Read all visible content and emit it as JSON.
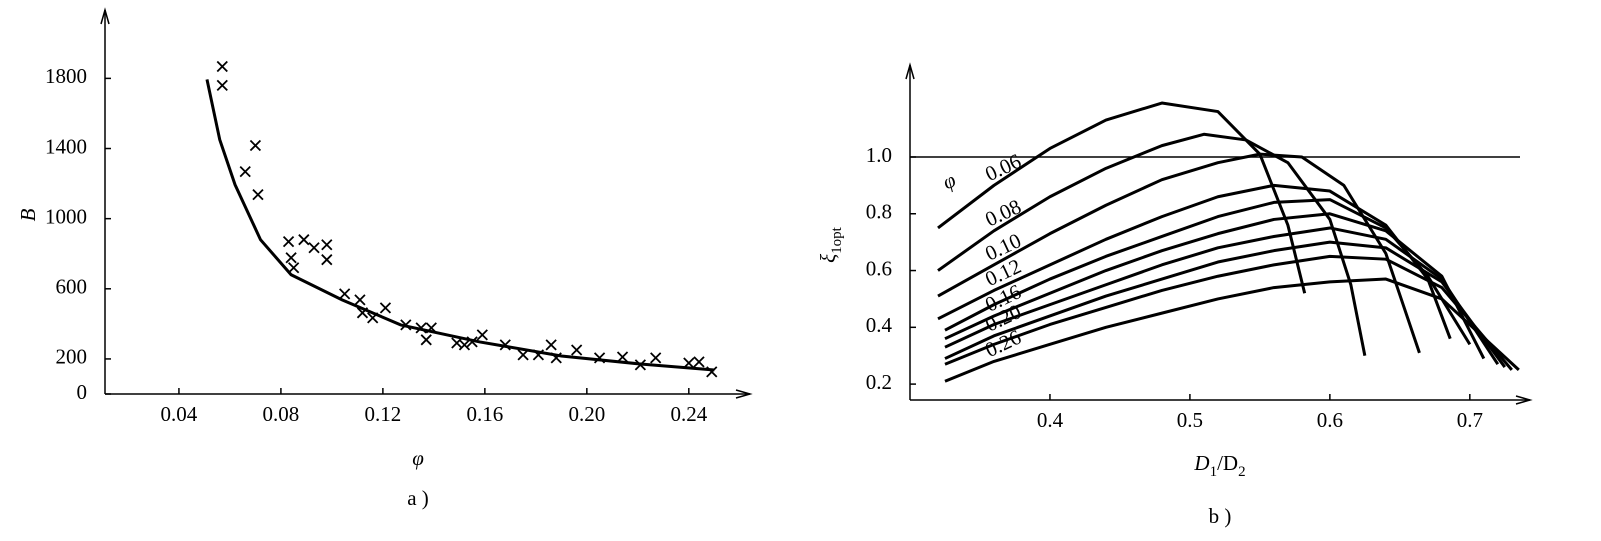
{
  "chart_data": [
    {
      "type": "scatter",
      "x_label": "φ",
      "y_label": "B",
      "caption": "a )",
      "xlim": [
        0.011,
        0.264
      ],
      "ylim": [
        0,
        2190
      ],
      "xticks": [
        0.04,
        0.08,
        0.12,
        0.16,
        {
          "value": 0.2,
          "label": "0.20"
        },
        0.24
      ],
      "yticks": [
        0,
        200,
        600,
        1000,
        1400,
        1800
      ],
      "x": [
        0.057,
        0.057,
        0.07,
        0.066,
        0.071,
        0.083,
        0.084,
        0.085,
        0.089,
        0.093,
        0.098,
        0.098,
        0.105,
        0.111,
        0.112,
        0.116,
        0.121,
        0.129,
        0.135,
        0.137,
        0.139,
        0.149,
        0.152,
        0.155,
        0.159,
        0.168,
        0.175,
        0.181,
        0.186,
        0.188,
        0.196,
        0.205,
        0.214,
        0.221,
        0.227,
        0.24,
        0.249,
        0.244
      ],
      "values": [
        1868,
        1760,
        1417,
        1268,
        1137,
        869,
        777,
        720,
        880,
        834,
        851,
        766,
        571,
        537,
        463,
        434,
        491,
        394,
        377,
        309,
        377,
        291,
        280,
        297,
        337,
        280,
        223,
        223,
        280,
        206,
        251,
        206,
        211,
        166,
        206,
        177,
        126,
        183
      ],
      "fit": {
        "x": [
          0.051,
          0.056,
          0.062,
          0.072,
          0.084,
          0.104,
          0.127,
          0.158,
          0.19,
          0.221,
          0.25
        ],
        "values": [
          1794,
          1451,
          1194,
          880,
          680,
          537,
          394,
          297,
          217,
          171,
          137
        ]
      }
    },
    {
      "type": "line",
      "x_label": [
        "D",
        "1",
        "/D",
        "2"
      ],
      "y_label": [
        "ξ",
        "1opt"
      ],
      "caption": "b )",
      "annotation": "φ",
      "xlim": [
        0.3,
        0.743
      ],
      "ylim": [
        0.144,
        1.324
      ],
      "xticks": [
        0.4,
        0.5,
        0.6,
        0.7
      ],
      "yticks": [
        0.2,
        0.4,
        0.6,
        0.8,
        {
          "value": 1.0,
          "label": "1.0"
        }
      ],
      "hline": 1.0,
      "series": [
        {
          "name": "0.06",
          "x": [
            0.32,
            0.36,
            0.4,
            0.44,
            0.48,
            0.52,
            0.55,
            0.57,
            0.582
          ],
          "values": [
            0.75,
            0.9,
            1.03,
            1.13,
            1.19,
            1.16,
            1.01,
            0.76,
            0.52
          ]
        },
        {
          "name": "0.08",
          "x": [
            0.32,
            0.36,
            0.4,
            0.44,
            0.48,
            0.51,
            0.54,
            0.57,
            0.6,
            0.615,
            0.625
          ],
          "values": [
            0.6,
            0.74,
            0.86,
            0.96,
            1.04,
            1.08,
            1.06,
            0.98,
            0.78,
            0.55,
            0.3
          ]
        },
        {
          "name": "0.10",
          "x": [
            0.32,
            0.36,
            0.4,
            0.44,
            0.48,
            0.52,
            0.55,
            0.58,
            0.61,
            0.64,
            0.664
          ],
          "values": [
            0.51,
            0.62,
            0.73,
            0.83,
            0.92,
            0.98,
            1.01,
            1.0,
            0.9,
            0.66,
            0.31
          ]
        },
        {
          "name": "0.12",
          "x": [
            0.32,
            0.36,
            0.4,
            0.44,
            0.48,
            0.52,
            0.56,
            0.6,
            0.64,
            0.67,
            0.686
          ],
          "values": [
            0.43,
            0.53,
            0.62,
            0.71,
            0.79,
            0.86,
            0.9,
            0.88,
            0.76,
            0.57,
            0.36
          ]
        },
        {
          "x": [
            0.325,
            0.36,
            0.4,
            0.44,
            0.48,
            0.52,
            0.56,
            0.6,
            0.64,
            0.67,
            0.7
          ],
          "values": [
            0.39,
            0.48,
            0.57,
            0.65,
            0.72,
            0.79,
            0.84,
            0.85,
            0.75,
            0.58,
            0.34
          ]
        },
        {
          "name": "0.16",
          "x": [
            0.325,
            0.36,
            0.4,
            0.44,
            0.48,
            0.52,
            0.56,
            0.6,
            0.64,
            0.68,
            0.71
          ],
          "values": [
            0.36,
            0.44,
            0.52,
            0.6,
            0.67,
            0.73,
            0.78,
            0.8,
            0.74,
            0.58,
            0.29
          ]
        },
        {
          "x": [
            0.325,
            0.36,
            0.4,
            0.44,
            0.48,
            0.52,
            0.56,
            0.6,
            0.64,
            0.68,
            0.72
          ],
          "values": [
            0.33,
            0.41,
            0.48,
            0.55,
            0.62,
            0.68,
            0.72,
            0.75,
            0.71,
            0.57,
            0.27
          ]
        },
        {
          "name": "0.20",
          "x": [
            0.325,
            0.36,
            0.4,
            0.44,
            0.48,
            0.52,
            0.56,
            0.6,
            0.64,
            0.68,
            0.725
          ],
          "values": [
            0.29,
            0.37,
            0.44,
            0.51,
            0.57,
            0.63,
            0.67,
            0.7,
            0.68,
            0.56,
            0.26
          ]
        },
        {
          "x": [
            0.325,
            0.36,
            0.4,
            0.44,
            0.48,
            0.52,
            0.56,
            0.6,
            0.64,
            0.68,
            0.73
          ],
          "values": [
            0.27,
            0.34,
            0.41,
            0.47,
            0.53,
            0.58,
            0.62,
            0.65,
            0.64,
            0.54,
            0.25
          ]
        },
        {
          "name": "0.26",
          "x": [
            0.325,
            0.36,
            0.4,
            0.44,
            0.48,
            0.52,
            0.56,
            0.6,
            0.64,
            0.68,
            0.735
          ],
          "values": [
            0.21,
            0.28,
            0.34,
            0.4,
            0.45,
            0.5,
            0.54,
            0.56,
            0.57,
            0.5,
            0.25
          ]
        }
      ]
    }
  ]
}
